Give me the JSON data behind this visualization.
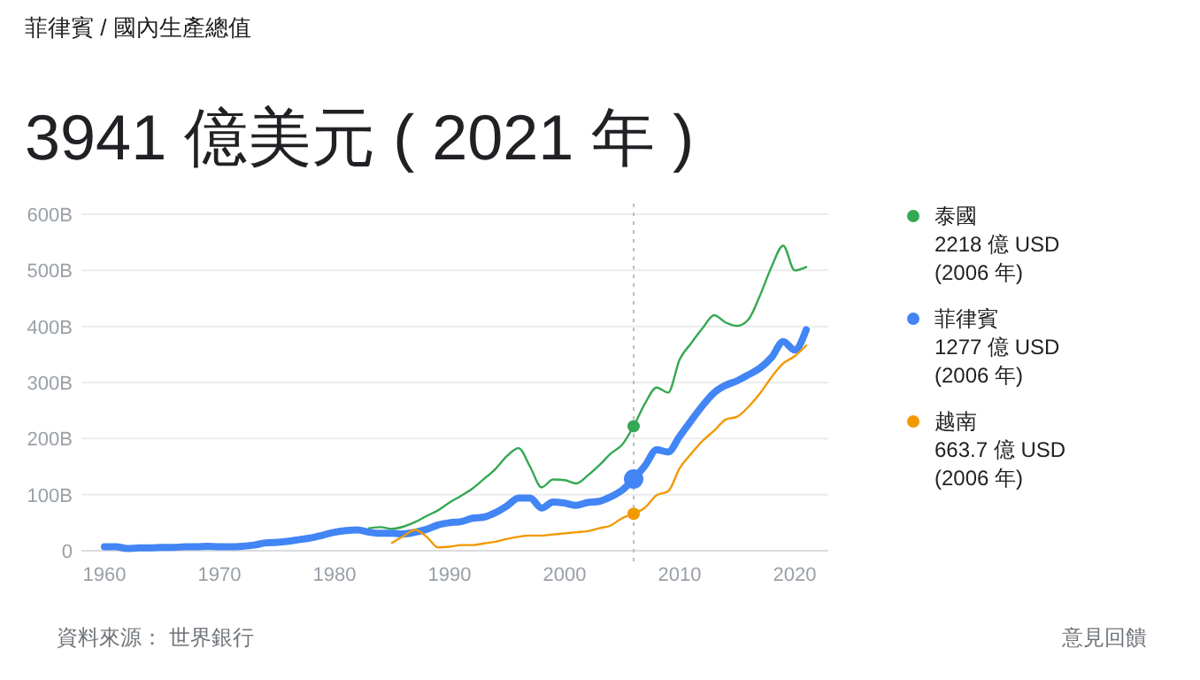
{
  "chart_data": {
    "type": "line",
    "title": "3941 億美元 ( 2021 年 )",
    "subtitle": "菲律賓 / 國內生產總值",
    "xlim": [
      1958,
      2023
    ],
    "xticks": [
      1960,
      1970,
      1980,
      1990,
      2000,
      2010,
      2020
    ],
    "ylim": [
      0,
      600
    ],
    "yticks": [
      0,
      {
        "value": 100,
        "label": "100B"
      },
      {
        "value": 200,
        "label": "200B"
      },
      {
        "value": 300,
        "label": "300B"
      },
      {
        "value": 400,
        "label": "400B"
      },
      {
        "value": 500,
        "label": "500B"
      },
      {
        "value": 600,
        "label": "600B"
      }
    ],
    "grid": "y",
    "legend": "right",
    "marker": "none",
    "ref_lines": [
      {
        "axis": "x",
        "value": 2006,
        "color": "#bdbdbd",
        "line_style": "dotted"
      }
    ],
    "series": [
      {
        "name": "泰國",
        "color": "#34a853",
        "x": [
          1983,
          1984,
          1985,
          1986,
          1987,
          1988,
          1989,
          1990,
          1991,
          1992,
          1993,
          1994,
          1995,
          1996,
          1997,
          1998,
          1999,
          2000,
          2001,
          2002,
          2003,
          2004,
          2005,
          2006,
          2007,
          2008,
          2009,
          2010,
          2011,
          2012,
          2013,
          2014,
          2015,
          2016,
          2017,
          2018,
          2019,
          2020,
          2021
        ],
        "values": [
          40,
          42,
          39,
          43,
          51,
          62,
          72,
          86,
          98,
          111,
          128,
          146,
          169,
          183,
          150,
          113,
          127,
          126,
          120,
          134,
          152,
          173,
          189,
          222,
          263,
          291,
          282,
          341,
          370,
          397,
          420,
          407,
          401,
          413,
          456,
          507,
          544,
          500,
          506
        ]
      },
      {
        "name": "菲律賓",
        "color": "#4285f4",
        "x": [
          1960,
          1961,
          1962,
          1963,
          1964,
          1965,
          1966,
          1967,
          1968,
          1969,
          1970,
          1971,
          1972,
          1973,
          1974,
          1975,
          1976,
          1977,
          1978,
          1979,
          1980,
          1981,
          1982,
          1983,
          1984,
          1985,
          1986,
          1987,
          1988,
          1989,
          1990,
          1991,
          1992,
          1993,
          1994,
          1995,
          1996,
          1997,
          1998,
          1999,
          2000,
          2001,
          2002,
          2003,
          2004,
          2005,
          2006,
          2007,
          2008,
          2009,
          2010,
          2011,
          2012,
          2013,
          2014,
          2015,
          2016,
          2017,
          2018,
          2019,
          2020,
          2021
        ],
        "values": [
          7,
          7,
          4,
          5,
          5,
          6,
          6,
          7,
          7,
          8,
          7,
          7,
          8,
          10,
          14,
          15,
          17,
          20,
          23,
          28,
          33,
          36,
          37,
          33,
          31,
          31,
          30,
          33,
          38,
          46,
          50,
          52,
          58,
          60,
          68,
          80,
          94,
          94,
          76,
          87,
          85,
          81,
          86,
          88,
          96,
          108,
          128,
          152,
          180,
          176,
          204,
          232,
          259,
          282,
          295,
          303,
          314,
          326,
          345,
          373,
          358,
          394
        ]
      },
      {
        "name": "越南",
        "color": "#f29900",
        "x": [
          1985,
          1986,
          1987,
          1988,
          1989,
          1990,
          1991,
          1992,
          1993,
          1994,
          1995,
          1996,
          1997,
          1998,
          1999,
          2000,
          2001,
          2002,
          2003,
          2004,
          2005,
          2006,
          2007,
          2008,
          2009,
          2010,
          2011,
          2012,
          2013,
          2014,
          2015,
          2016,
          2017,
          2018,
          2019,
          2020,
          2021
        ],
        "values": [
          14,
          26,
          37,
          25,
          6,
          7,
          10,
          10,
          13,
          16,
          21,
          25,
          27,
          27,
          29,
          31,
          33,
          35,
          40,
          45,
          58,
          66,
          77,
          99,
          106,
          147,
          173,
          196,
          214,
          234,
          239,
          257,
          281,
          310,
          334,
          347,
          366
        ]
      }
    ],
    "annotations": [
      "2218 億 USD\n(2006 年)",
      "1277 億 USD\n(2006 年)",
      "663.7 億 USD\n(2006 年)",
      "資料來源： 世界銀行",
      "意見回饋"
    ]
  }
}
